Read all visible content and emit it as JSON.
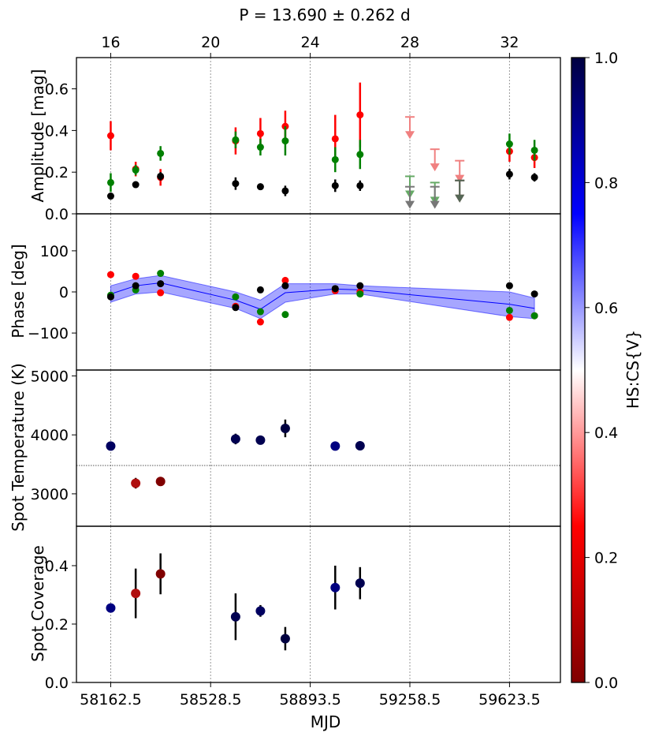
{
  "chart_data": {
    "type": "scatter",
    "title": "P = 13.690 ± 0.262 d",
    "xlabel": "MJD",
    "top_xlabel": "",
    "xlim": [
      58037,
      59810
    ],
    "top_axis": {
      "ticks": [
        16,
        20,
        24,
        28,
        32
      ],
      "tick_labels": [
        "16",
        "20",
        "24",
        "28",
        "32"
      ],
      "tick_positions_mjd": [
        58162.5,
        58528.5,
        58893.5,
        59258.5,
        59623.5
      ]
    },
    "bottom_ticks": [
      58162.5,
      58528.5,
      58893.5,
      59258.5,
      59623.5
    ],
    "bottom_tick_labels": [
      "58162.5",
      "58528.5",
      "58893.5",
      "59258.5",
      "59623.5"
    ],
    "colorbar": {
      "label": "HS:CS{V}",
      "range": [
        0.0,
        1.0
      ],
      "ticks": [
        "0.0",
        "0.2",
        "0.4",
        "0.6",
        "0.8",
        "1.0"
      ],
      "colors": [
        "#800000",
        "#ff0000",
        "#ffffff",
        "#0000ff",
        "#000040"
      ]
    },
    "panels": [
      {
        "name": "amplitude",
        "ylabel": "Amplitude [mag]",
        "ylim": [
          0.0,
          0.75
        ],
        "yticks": [
          0.0,
          0.2,
          0.4,
          0.6
        ],
        "ytick_labels": [
          "0.0",
          "0.2",
          "0.4",
          "0.6"
        ],
        "series": [
          {
            "name": "red",
            "color": "#ff0000",
            "points": [
              {
                "x": 58162.5,
                "y": 0.375,
                "err": 0.07
              },
              {
                "x": 58254,
                "y": 0.215,
                "err": 0.035
              },
              {
                "x": 58345,
                "y": 0.175,
                "err": 0.04
              },
              {
                "x": 58620,
                "y": 0.35,
                "err": 0.065
              },
              {
                "x": 58711,
                "y": 0.385,
                "err": 0.075
              },
              {
                "x": 58802,
                "y": 0.42,
                "err": 0.075
              },
              {
                "x": 58985,
                "y": 0.36,
                "err": 0.115
              },
              {
                "x": 59076,
                "y": 0.475,
                "err": 0.155
              },
              {
                "x": 59623.5,
                "y": 0.3,
                "err": 0.05
              },
              {
                "x": 59715,
                "y": 0.27,
                "err": 0.05
              }
            ]
          },
          {
            "name": "green",
            "color": "#008000",
            "points": [
              {
                "x": 58162.5,
                "y": 0.15,
                "err": 0.045
              },
              {
                "x": 58254,
                "y": 0.21,
                "err": 0.025
              },
              {
                "x": 58345,
                "y": 0.29,
                "err": 0.035
              },
              {
                "x": 58620,
                "y": 0.355,
                "err": 0.04
              },
              {
                "x": 58711,
                "y": 0.32,
                "err": 0.04
              },
              {
                "x": 58802,
                "y": 0.35,
                "err": 0.07
              },
              {
                "x": 58985,
                "y": 0.26,
                "err": 0.06
              },
              {
                "x": 59076,
                "y": 0.285,
                "err": 0.07
              },
              {
                "x": 59623.5,
                "y": 0.335,
                "err": 0.05
              },
              {
                "x": 59715,
                "y": 0.305,
                "err": 0.05
              }
            ]
          },
          {
            "name": "black",
            "color": "#000000",
            "points": [
              {
                "x": 58162.5,
                "y": 0.085,
                "err": 0.015
              },
              {
                "x": 58254,
                "y": 0.14,
                "err": 0.015
              },
              {
                "x": 58345,
                "y": 0.18,
                "err": 0.02
              },
              {
                "x": 58620,
                "y": 0.145,
                "err": 0.03
              },
              {
                "x": 58711,
                "y": 0.13,
                "err": 0.015
              },
              {
                "x": 58802,
                "y": 0.11,
                "err": 0.025
              },
              {
                "x": 58985,
                "y": 0.135,
                "err": 0.03
              },
              {
                "x": 59076,
                "y": 0.135,
                "err": 0.025
              },
              {
                "x": 59623.5,
                "y": 0.19,
                "err": 0.025
              },
              {
                "x": 59715,
                "y": 0.175,
                "err": 0.02
              }
            ]
          },
          {
            "name": "upper-limits",
            "points": [
              {
                "x": 59258.5,
                "y": 0.465,
                "color": "#f08080"
              },
              {
                "x": 59258.5,
                "y": 0.18,
                "color": "#66aa66"
              },
              {
                "x": 59258.5,
                "y": 0.13,
                "color": "#777777"
              },
              {
                "x": 59350,
                "y": 0.31,
                "color": "#f08080"
              },
              {
                "x": 59350,
                "y": 0.15,
                "color": "#66aa66"
              },
              {
                "x": 59350,
                "y": 0.13,
                "color": "#777777"
              },
              {
                "x": 59441,
                "y": 0.255,
                "color": "#f08080"
              },
              {
                "x": 59441,
                "y": 0.16,
                "color": "#884444"
              },
              {
                "x": 59441,
                "y": 0.16,
                "color": "#556655"
              }
            ]
          }
        ]
      },
      {
        "name": "phase",
        "ylabel": "Phase [deg]",
        "ylim": [
          -190,
          190
        ],
        "yticks": [
          -100,
          0,
          100
        ],
        "ytick_labels": [
          "−100",
          "0",
          "100"
        ],
        "band": {
          "x": [
            58162.5,
            58254,
            58345,
            58620,
            58711,
            58802,
            58985,
            59076,
            59623.5,
            59715
          ],
          "mid": [
            -5,
            15,
            22,
            -20,
            -42,
            -2,
            7,
            5,
            -30,
            -40
          ],
          "lower": [
            -25,
            -5,
            0,
            -40,
            -65,
            -25,
            -5,
            -5,
            -60,
            -65
          ],
          "upper": [
            15,
            32,
            40,
            0,
            -20,
            20,
            20,
            15,
            0,
            -15
          ],
          "color": "#0000ff"
        },
        "series": [
          {
            "name": "red",
            "color": "#ff0000",
            "points": [
              {
                "x": 58162.5,
                "y": 42
              },
              {
                "x": 58254,
                "y": 38
              },
              {
                "x": 58345,
                "y": -2
              },
              {
                "x": 58620,
                "y": -35
              },
              {
                "x": 58711,
                "y": -73
              },
              {
                "x": 58802,
                "y": 28
              },
              {
                "x": 58985,
                "y": 3
              },
              {
                "x": 59076,
                "y": 0
              },
              {
                "x": 59623.5,
                "y": -62
              },
              {
                "x": 59715,
                "y": -58
              }
            ]
          },
          {
            "name": "green",
            "color": "#008000",
            "points": [
              {
                "x": 58162.5,
                "y": -8
              },
              {
                "x": 58254,
                "y": 5
              },
              {
                "x": 58345,
                "y": 45
              },
              {
                "x": 58620,
                "y": -12
              },
              {
                "x": 58711,
                "y": -48
              },
              {
                "x": 58802,
                "y": -55
              },
              {
                "x": 58985,
                "y": 8
              },
              {
                "x": 59076,
                "y": -5
              },
              {
                "x": 59623.5,
                "y": -45
              },
              {
                "x": 59715,
                "y": -58
              }
            ]
          },
          {
            "name": "black",
            "color": "#000000",
            "points": [
              {
                "x": 58162.5,
                "y": -12
              },
              {
                "x": 58254,
                "y": 15
              },
              {
                "x": 58345,
                "y": 20
              },
              {
                "x": 58620,
                "y": -38
              },
              {
                "x": 58711,
                "y": 5
              },
              {
                "x": 58802,
                "y": 15
              },
              {
                "x": 58985,
                "y": 8
              },
              {
                "x": 59076,
                "y": 15
              },
              {
                "x": 59623.5,
                "y": 15
              },
              {
                "x": 59715,
                "y": -5
              }
            ]
          }
        ]
      },
      {
        "name": "spot-temperature",
        "ylabel": "Spot Temperature (K)",
        "ylim": [
          2450,
          5100
        ],
        "yticks": [
          3000,
          4000,
          5000
        ],
        "ytick_labels": [
          "3000",
          "4000",
          "5000"
        ],
        "reference_line": 3480,
        "series": [
          {
            "name": "temperature",
            "points": [
              {
                "x": 58162.5,
                "y": 3810,
                "err": 0,
                "color": "#000060"
              },
              {
                "x": 58254,
                "y": 3180,
                "err": 90,
                "color": "#b01010"
              },
              {
                "x": 58345,
                "y": 3210,
                "err": 0,
                "color": "#800000"
              },
              {
                "x": 58620,
                "y": 3930,
                "err": 90,
                "color": "#000050"
              },
              {
                "x": 58711,
                "y": 3910,
                "err": 0,
                "color": "#000050"
              },
              {
                "x": 58802,
                "y": 4110,
                "err": 150,
                "color": "#000040"
              },
              {
                "x": 58985,
                "y": 3810,
                "err": 0,
                "color": "#000080"
              },
              {
                "x": 59076,
                "y": 3815,
                "err": 0,
                "color": "#000050"
              }
            ]
          }
        ]
      },
      {
        "name": "spot-coverage",
        "ylabel": "Spot Coverage",
        "ylim": [
          0.0,
          0.535
        ],
        "yticks": [
          0.0,
          0.2,
          0.4
        ],
        "ytick_labels": [
          "0.0",
          "0.2",
          "0.4"
        ],
        "series": [
          {
            "name": "coverage",
            "points": [
              {
                "x": 58162.5,
                "y": 0.255,
                "err": 0.015,
                "color": "#000080"
              },
              {
                "x": 58254,
                "y": 0.305,
                "err": 0.085,
                "color": "#b01010"
              },
              {
                "x": 58345,
                "y": 0.372,
                "err": 0.07,
                "color": "#800000"
              },
              {
                "x": 58620,
                "y": 0.225,
                "err": 0.08,
                "color": "#000050"
              },
              {
                "x": 58711,
                "y": 0.245,
                "err": 0.02,
                "color": "#000060"
              },
              {
                "x": 58802,
                "y": 0.15,
                "err": 0.04,
                "color": "#000040"
              },
              {
                "x": 58985,
                "y": 0.325,
                "err": 0.075,
                "color": "#000080"
              },
              {
                "x": 59076,
                "y": 0.34,
                "err": 0.055,
                "color": "#000050"
              }
            ]
          }
        ]
      }
    ]
  }
}
